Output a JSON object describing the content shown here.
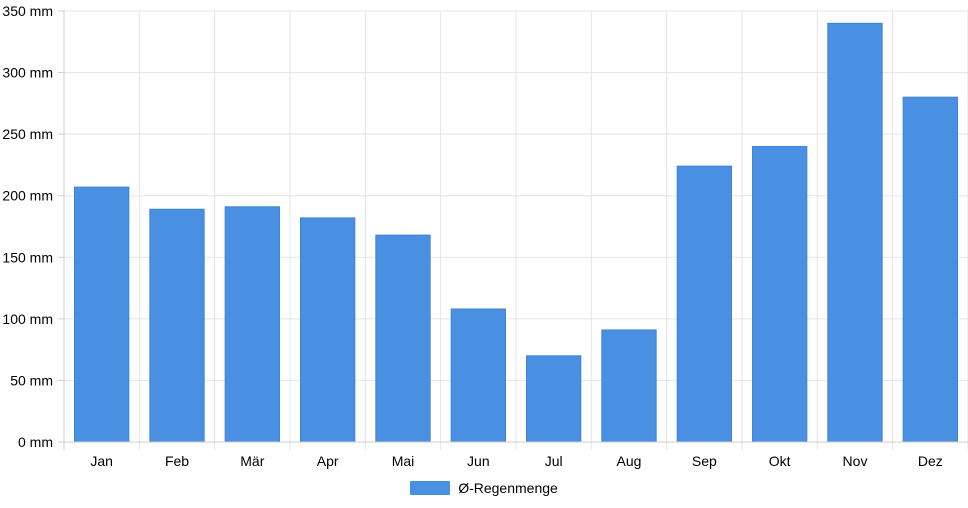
{
  "chart_data": {
    "type": "bar",
    "categories": [
      "Jan",
      "Feb",
      "Mär",
      "Apr",
      "Mai",
      "Jun",
      "Jul",
      "Aug",
      "Sep",
      "Okt",
      "Nov",
      "Dez"
    ],
    "series": [
      {
        "name": "Ø-Regenmenge",
        "values": [
          207,
          189,
          191,
          182,
          168,
          108,
          70,
          91,
          224,
          240,
          340,
          280
        ],
        "color": "#4a90e2"
      }
    ],
    "y_ticks": [
      "0 mm",
      "50 mm",
      "100 mm",
      "150 mm",
      "200 mm",
      "250 mm",
      "300 mm",
      "350 mm"
    ],
    "ylim": [
      0,
      350
    ],
    "y_unit": "mm",
    "grid": true,
    "legend_position": "bottom"
  }
}
